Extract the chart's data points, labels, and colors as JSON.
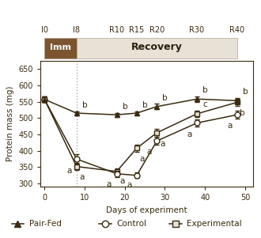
{
  "pair_fed_x": [
    0,
    8,
    18,
    23,
    28,
    38,
    48
  ],
  "pair_fed_y": [
    557,
    515,
    510,
    515,
    535,
    558,
    553
  ],
  "control_x": [
    0,
    8,
    18,
    23,
    28,
    38,
    48
  ],
  "control_y": [
    557,
    375,
    330,
    325,
    430,
    485,
    510
  ],
  "experimental_x": [
    0,
    8,
    18,
    23,
    28,
    38,
    48
  ],
  "experimental_y": [
    557,
    352,
    337,
    408,
    455,
    513,
    548
  ],
  "pair_fed_err": [
    8,
    6,
    6,
    6,
    8,
    8,
    8
  ],
  "control_err": [
    8,
    15,
    10,
    8,
    12,
    12,
    12
  ],
  "experimental_err": [
    8,
    10,
    8,
    10,
    12,
    10,
    10
  ],
  "pair_fed_labels": [
    "",
    "b",
    "b",
    "b",
    "b",
    "b",
    "b"
  ],
  "control_labels": [
    "",
    "a",
    "a",
    "a",
    "a",
    "a",
    "a"
  ],
  "experimental_labels": [
    "",
    "a",
    "a",
    "a",
    "a",
    "c",
    "b"
  ],
  "top_ticks": [
    "I0",
    "I8",
    "R10",
    "R15",
    "R20",
    "R30",
    "R40"
  ],
  "top_ticks_x": [
    0,
    8,
    18,
    23,
    28,
    38,
    48
  ],
  "imm_color": "#7a5530",
  "recovery_color": "#e8e2d6",
  "imm_text_color": "#ffffff",
  "recovery_text_color": "#2a2010",
  "line_color": "#3a2a10",
  "border_color": "#b0a090",
  "xlabel": "Days of experiment",
  "ylabel": "Protein mass (mg)",
  "xlim": [
    -1,
    52
  ],
  "ylim": [
    290,
    675
  ],
  "yticks": [
    300,
    350,
    400,
    450,
    500,
    550,
    600,
    650
  ],
  "xticks": [
    0,
    10,
    20,
    30,
    40,
    50
  ],
  "vline_x": 8,
  "vline_color": "#aaaaaa",
  "legend_pair_fed": "Pair-Fed",
  "legend_control": "Control",
  "legend_experimental": "Experimental",
  "label_fontsize": 7.5,
  "tick_fontsize": 7,
  "annot_fontsize": 7.5,
  "legend_fontsize": 7.5,
  "banner_fontsize_imm": 8,
  "banner_fontsize_rec": 9,
  "toptick_fontsize": 7
}
